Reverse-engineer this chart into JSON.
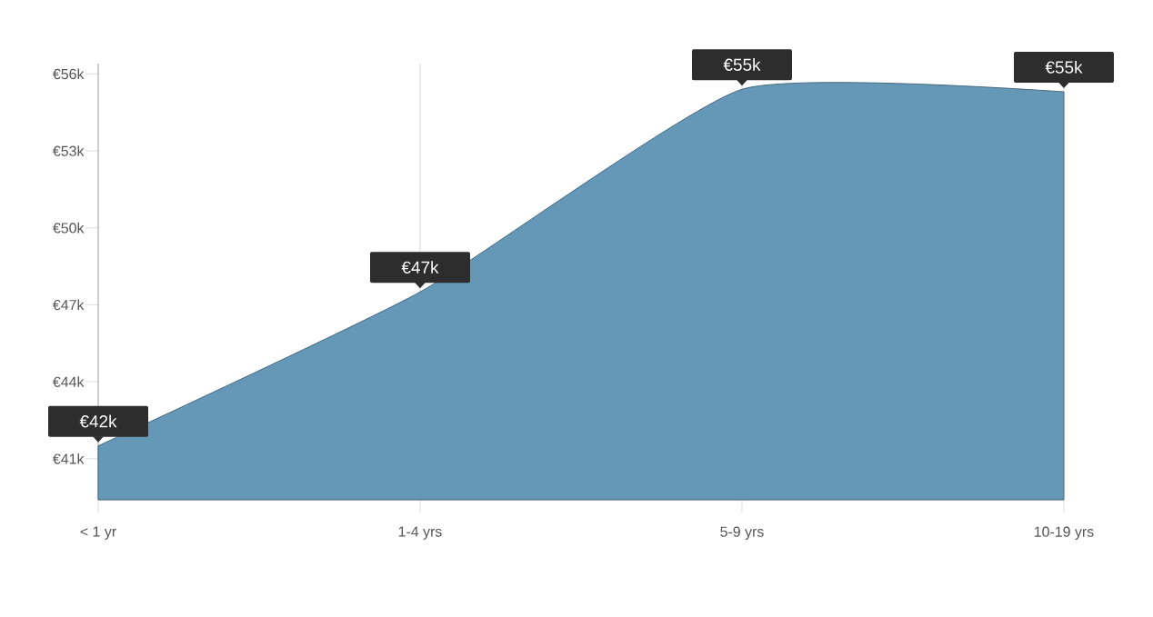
{
  "chart_data": {
    "type": "area",
    "categories": [
      "< 1 yr",
      "1-4 yrs",
      "5-9 yrs",
      "10-19 yrs"
    ],
    "values": [
      41.5,
      47.5,
      55.4,
      55.3
    ],
    "value_labels": [
      "€42k",
      "€47k",
      "€55k",
      "€55k"
    ],
    "color": "#6597b6",
    "ylim": [
      39.4,
      56.4
    ],
    "yticks": [
      {
        "value": 41,
        "label": "€41k"
      },
      {
        "value": 44,
        "label": "€44k"
      },
      {
        "value": 47,
        "label": "€47k"
      },
      {
        "value": 50,
        "label": "€50k"
      },
      {
        "value": 53,
        "label": "€53k"
      },
      {
        "value": 56,
        "label": "€56k"
      }
    ],
    "grid": "x"
  }
}
